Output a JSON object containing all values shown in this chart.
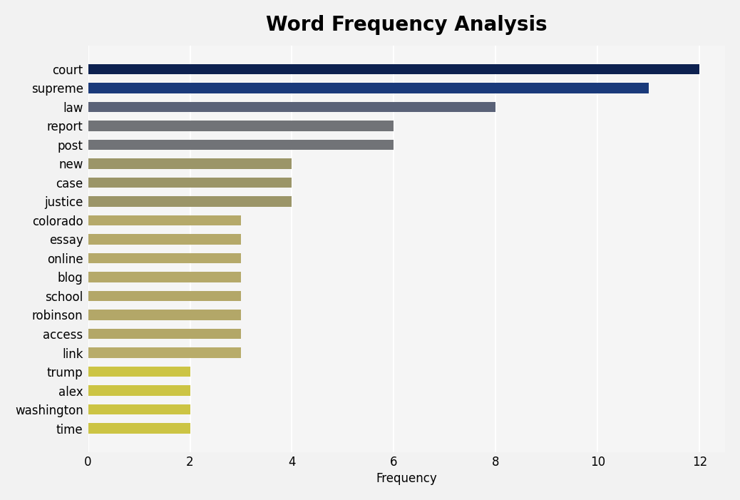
{
  "title": "Word Frequency Analysis",
  "categories": [
    "court",
    "supreme",
    "law",
    "report",
    "post",
    "new",
    "case",
    "justice",
    "colorado",
    "essay",
    "online",
    "blog",
    "school",
    "robinson",
    "access",
    "link",
    "trump",
    "alex",
    "washington",
    "time"
  ],
  "values": [
    12,
    11,
    8,
    6,
    6,
    4,
    4,
    4,
    3,
    3,
    3,
    3,
    3,
    3,
    3,
    3,
    2,
    2,
    2,
    2
  ],
  "bar_colors": [
    "#0d2150",
    "#1a3a7a",
    "#5a6278",
    "#717377",
    "#717377",
    "#9b9568",
    "#9b9568",
    "#9b9568",
    "#b5a96a",
    "#b5a96a",
    "#b5a96a",
    "#b5a96a",
    "#b3a768",
    "#b3a768",
    "#b3a768",
    "#b8ac6a",
    "#ccc444",
    "#ccc444",
    "#ccc444",
    "#ccc444"
  ],
  "xlabel": "Frequency",
  "xlim": [
    0,
    12.5
  ],
  "xticks": [
    0,
    2,
    4,
    6,
    8,
    10,
    12
  ],
  "background_color": "#f2f2f2",
  "plot_bg_color": "#f5f5f5",
  "title_fontsize": 20,
  "label_fontsize": 12,
  "tick_fontsize": 12,
  "bar_height": 0.55
}
